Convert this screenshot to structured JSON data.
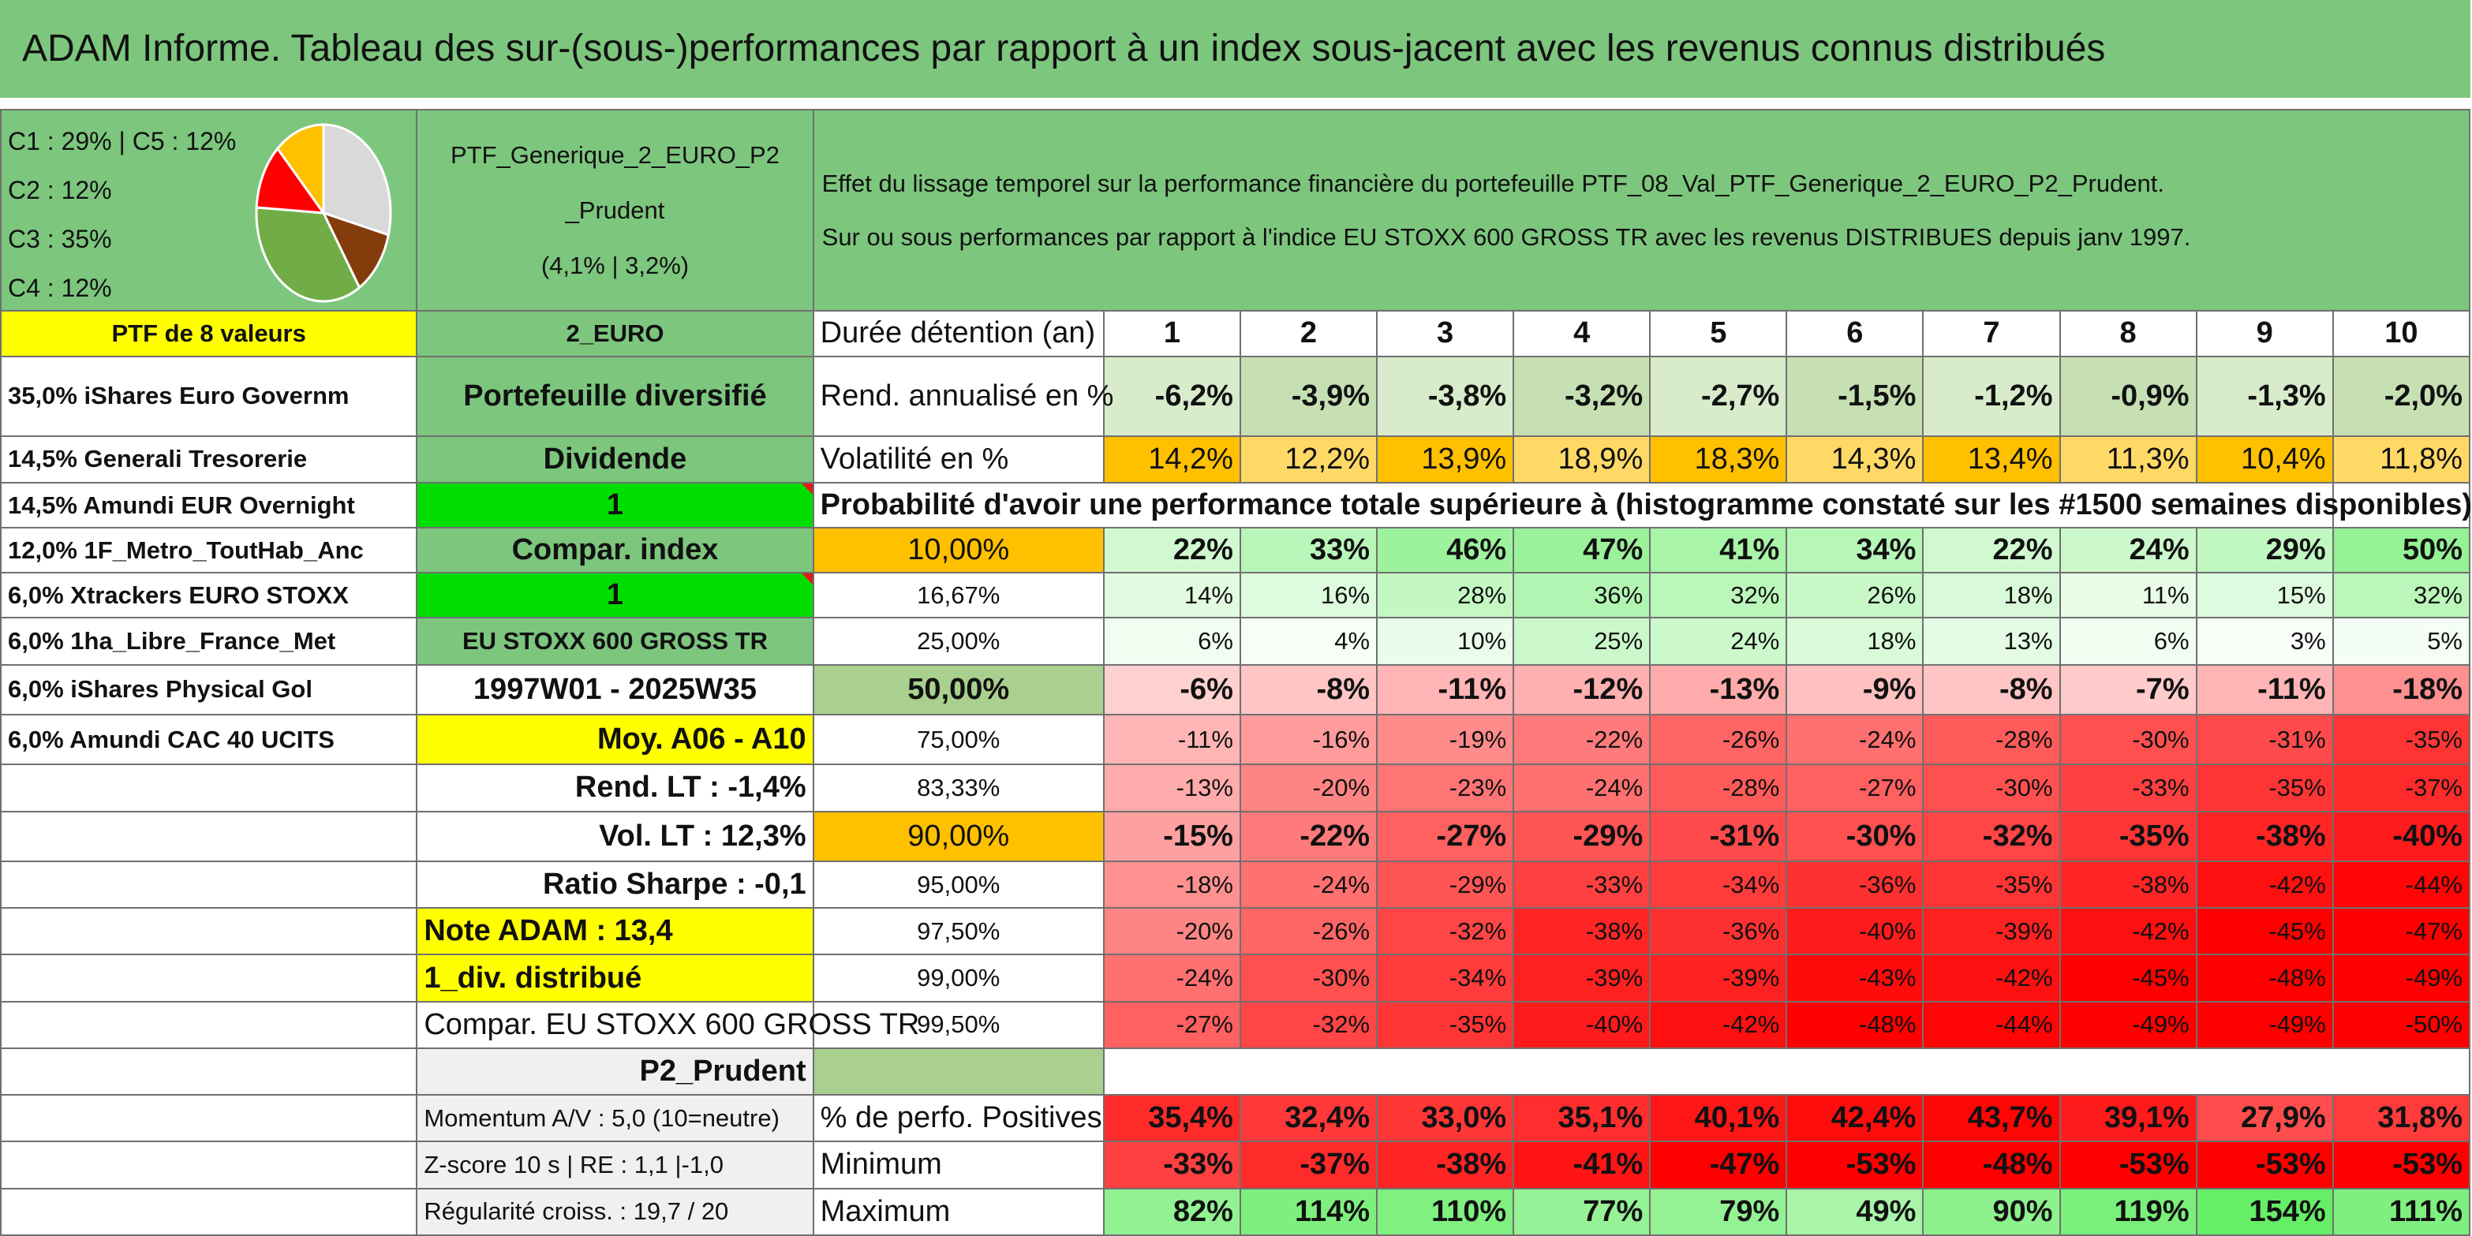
{
  "title": "ADAM Informe. Tableau des sur-(sous-)performances par rapport à un index sous-jacent avec les revenus connus distribués",
  "allocation": {
    "labels": [
      "C1 : 29% | C5 : 12%",
      "C2 : 12%",
      "C3 : 35%",
      "C4 : 12%"
    ],
    "slices": [
      {
        "name": "C1",
        "value": 29,
        "color": "#d9d9d9"
      },
      {
        "name": "C2",
        "value": 12,
        "color": "#843c0c"
      },
      {
        "name": "C3",
        "value": 35,
        "color": "#70ad47"
      },
      {
        "name": "C4",
        "value": 12,
        "color": "#ff0000"
      },
      {
        "name": "C5",
        "value": 12,
        "color": "#ffc000"
      }
    ]
  },
  "portfolio": {
    "name_line1": "PTF_Generique_2_EURO_P2",
    "name_line2": "_Prudent",
    "name_line3": "(4,1% | 3,2%)",
    "description_line1": "Effet du lissage temporel sur la performance financière du portefeuille PTF_08_Val_PTF_Generique_2_EURO_P2_Prudent.",
    "description_line2": "Sur ou sous performances par rapport à l'indice EU STOXX 600 GROSS TR avec les revenus DISTRIBUES depuis janv 1997."
  },
  "left_col": [
    "PTF de 8 valeurs",
    "35,0% iShares Euro Governm",
    "14,5% Generali Tresorerie",
    "14,5% Amundi EUR Overnight",
    "12,0% 1F_Metro_ToutHab_Anc",
    "6,0% Xtrackers EURO STOXX",
    "6,0% 1ha_Libre_France_Met",
    "6,0% iShares Physical Gol",
    "6,0% Amundi CAC 40 UCITS",
    "",
    "",
    "",
    "",
    "",
    "",
    "",
    "",
    "",
    ""
  ],
  "mid_col": [
    "2_EURO",
    "Portefeuille diversifié",
    "Dividende",
    "1",
    "Compar. index",
    "1",
    "EU STOXX 600 GROSS TR",
    "1997W01 - 2025W35",
    "Moy. A06 - A10",
    "Rend. LT : -1,4%",
    "Vol. LT : 12,3%",
    "Ratio Sharpe : -0,1",
    "Note ADAM : 13,4",
    "1_div. distribué",
    "Compar. EU STOXX 600 GROSS TR",
    "P2_Prudent",
    "Momentum A/V : 5,0 (10=neutre)",
    "Z-score 10 s | RE : 1,1 |-1,0",
    "Régularité croiss. : 19,7 / 20"
  ],
  "header": {
    "label": "Durée détention (an)",
    "years": [
      "1",
      "2",
      "3",
      "4",
      "5",
      "6",
      "7",
      "8",
      "9",
      "10"
    ]
  },
  "rend": {
    "label": "Rend. annualisé en %",
    "values": [
      "-6,2%",
      "-3,9%",
      "-3,8%",
      "-3,2%",
      "-2,7%",
      "-1,5%",
      "-1,2%",
      "-0,9%",
      "-1,3%",
      "-2,0%"
    ]
  },
  "vol": {
    "label": "Volatilité en %",
    "values": [
      "14,2%",
      "12,2%",
      "13,9%",
      "18,9%",
      "18,3%",
      "14,3%",
      "13,4%",
      "11,3%",
      "10,4%",
      "11,8%"
    ]
  },
  "prob_title": "Probabilité d'avoir une performance totale supérieure à (histogramme constaté sur les #1500 semaines disponibles)",
  "prob_rows": [
    {
      "label": "10,00%",
      "values": [
        "22%",
        "33%",
        "46%",
        "47%",
        "41%",
        "34%",
        "22%",
        "24%",
        "29%",
        "50%"
      ]
    },
    {
      "label": "16,67%",
      "values": [
        "14%",
        "16%",
        "28%",
        "36%",
        "32%",
        "26%",
        "18%",
        "11%",
        "15%",
        "32%"
      ]
    },
    {
      "label": "25,00%",
      "values": [
        "6%",
        "4%",
        "10%",
        "25%",
        "24%",
        "18%",
        "13%",
        "6%",
        "3%",
        "5%"
      ]
    },
    {
      "label": "50,00%",
      "values": [
        "-6%",
        "-8%",
        "-11%",
        "-12%",
        "-13%",
        "-9%",
        "-8%",
        "-7%",
        "-11%",
        "-18%"
      ]
    },
    {
      "label": "75,00%",
      "values": [
        "-11%",
        "-16%",
        "-19%",
        "-22%",
        "-26%",
        "-24%",
        "-28%",
        "-30%",
        "-31%",
        "-35%"
      ]
    },
    {
      "label": "83,33%",
      "values": [
        "-13%",
        "-20%",
        "-23%",
        "-24%",
        "-28%",
        "-27%",
        "-30%",
        "-33%",
        "-35%",
        "-37%"
      ]
    },
    {
      "label": "90,00%",
      "values": [
        "-15%",
        "-22%",
        "-27%",
        "-29%",
        "-31%",
        "-30%",
        "-32%",
        "-35%",
        "-38%",
        "-40%"
      ]
    },
    {
      "label": "95,00%",
      "values": [
        "-18%",
        "-24%",
        "-29%",
        "-33%",
        "-34%",
        "-36%",
        "-35%",
        "-38%",
        "-42%",
        "-44%"
      ]
    },
    {
      "label": "97,50%",
      "values": [
        "-20%",
        "-26%",
        "-32%",
        "-38%",
        "-36%",
        "-40%",
        "-39%",
        "-42%",
        "-45%",
        "-47%"
      ]
    },
    {
      "label": "99,00%",
      "values": [
        "-24%",
        "-30%",
        "-34%",
        "-39%",
        "-39%",
        "-43%",
        "-42%",
        "-45%",
        "-48%",
        "-49%"
      ]
    },
    {
      "label": "99,50%",
      "values": [
        "-27%",
        "-32%",
        "-35%",
        "-40%",
        "-42%",
        "-48%",
        "-44%",
        "-49%",
        "-49%",
        "-50%"
      ]
    }
  ],
  "stats": [
    {
      "label": "% de perfo. Positives",
      "values": [
        "35,4%",
        "32,4%",
        "33,0%",
        "35,1%",
        "40,1%",
        "42,4%",
        "43,7%",
        "39,1%",
        "27,9%",
        "31,8%"
      ]
    },
    {
      "label": "Minimum",
      "values": [
        "-33%",
        "-37%",
        "-38%",
        "-41%",
        "-47%",
        "-53%",
        "-48%",
        "-53%",
        "-53%",
        "-53%"
      ]
    },
    {
      "label": "Maximum",
      "values": [
        "82%",
        "114%",
        "110%",
        "77%",
        "79%",
        "49%",
        "90%",
        "119%",
        "154%",
        "111%"
      ]
    }
  ],
  "colors": {
    "title_bg": "#7dc67e",
    "yellow": "#ffff00",
    "bright_green": "#00dd00",
    "orange": "#ffc000",
    "red_text": "#ee1111"
  }
}
